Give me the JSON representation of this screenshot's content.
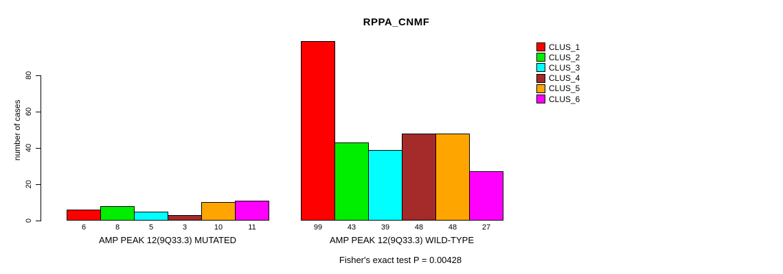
{
  "chart_data": {
    "type": "bar",
    "title": "RPPA_CNMF",
    "xlabel": "",
    "ylabel": "number of cases",
    "ylim": [
      0,
      99
    ],
    "yticks": [
      0,
      20,
      40,
      60,
      80
    ],
    "grid": false,
    "legend_position": "right",
    "bar_value_labels": true,
    "categories": [
      "AMP PEAK 12(9Q33.3) MUTATED",
      "AMP PEAK 12(9Q33.3) WILD-TYPE"
    ],
    "series": [
      {
        "name": "CLUS_1",
        "color": "#FF0000",
        "values": [
          6,
          99
        ]
      },
      {
        "name": "CLUS_2",
        "color": "#00EE00",
        "values": [
          8,
          43
        ]
      },
      {
        "name": "CLUS_3",
        "color": "#00FFFF",
        "values": [
          5,
          39
        ]
      },
      {
        "name": "CLUS_4",
        "color": "#A52A2A",
        "values": [
          3,
          48
        ]
      },
      {
        "name": "CLUS_5",
        "color": "#FFA500",
        "values": [
          10,
          48
        ]
      },
      {
        "name": "CLUS_6",
        "color": "#FF00FF",
        "values": [
          11,
          27
        ]
      }
    ],
    "annotation": "Fisher's exact test P = 0.00428"
  }
}
